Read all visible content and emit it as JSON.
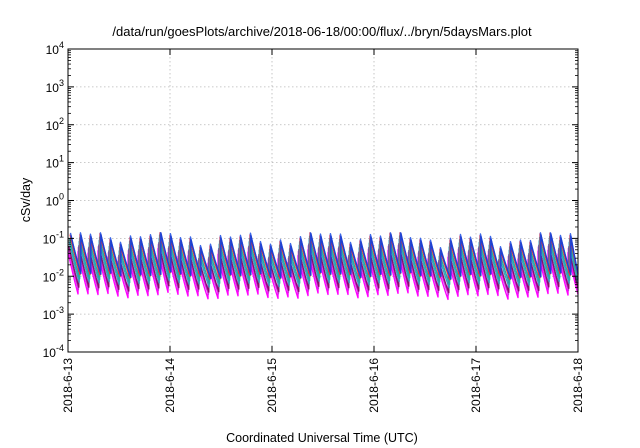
{
  "chart_data": {
    "type": "line",
    "title": "/data/run/goesPlots/archive/2018-06-18/00:00/flux/../bryn/5daysMars.plot",
    "xlabel": "Coordinated Universal Time (UTC)",
    "ylabel": "cSv/day",
    "yscale": "log",
    "ylim": [
      0.0001,
      10000
    ],
    "y_ticks": [
      {
        "value": 0.0001,
        "base": "10",
        "exp": "-4"
      },
      {
        "value": 0.001,
        "base": "10",
        "exp": "-3"
      },
      {
        "value": 0.01,
        "base": "10",
        "exp": "-2"
      },
      {
        "value": 0.1,
        "base": "10",
        "exp": "-1"
      },
      {
        "value": 1,
        "base": "10",
        "exp": "0"
      },
      {
        "value": 10,
        "base": "10",
        "exp": "1"
      },
      {
        "value": 100,
        "base": "10",
        "exp": "2"
      },
      {
        "value": 1000,
        "base": "10",
        "exp": "3"
      },
      {
        "value": 10000,
        "base": "10",
        "exp": "4"
      }
    ],
    "x_ticks": [
      "2018-6-13",
      "2018-6-14",
      "2018-6-15",
      "2018-6-16",
      "2018-6-17",
      "2018-6-18"
    ],
    "xlim": [
      "2018-6-13",
      "2018-6-18"
    ],
    "grid": true,
    "legend": "none",
    "pattern": {
      "teeth_per_day": 10.2,
      "peak_range": [
        0.035,
        0.13
      ],
      "trough_range": [
        0.003,
        0.012
      ]
    },
    "series": [
      {
        "color": "#ff00ff",
        "peak": 0.035,
        "trough": 0.0032
      },
      {
        "color": "#d030e0",
        "peak": 0.045,
        "trough": 0.0042
      },
      {
        "color": "#8a1070",
        "peak": 0.05,
        "trough": 0.0048
      },
      {
        "color": "#3aa0c0",
        "peak": 0.065,
        "trough": 0.0065
      },
      {
        "color": "#20b0a0",
        "peak": 0.08,
        "trough": 0.008
      },
      {
        "color": "#ff3030",
        "peak": 0.1,
        "trough": 0.0105
      },
      {
        "color": "#3a66e8",
        "peak": 0.11,
        "trough": 0.012
      },
      {
        "color": "#2040d0",
        "peak": 0.095,
        "trough": 0.011
      }
    ]
  }
}
